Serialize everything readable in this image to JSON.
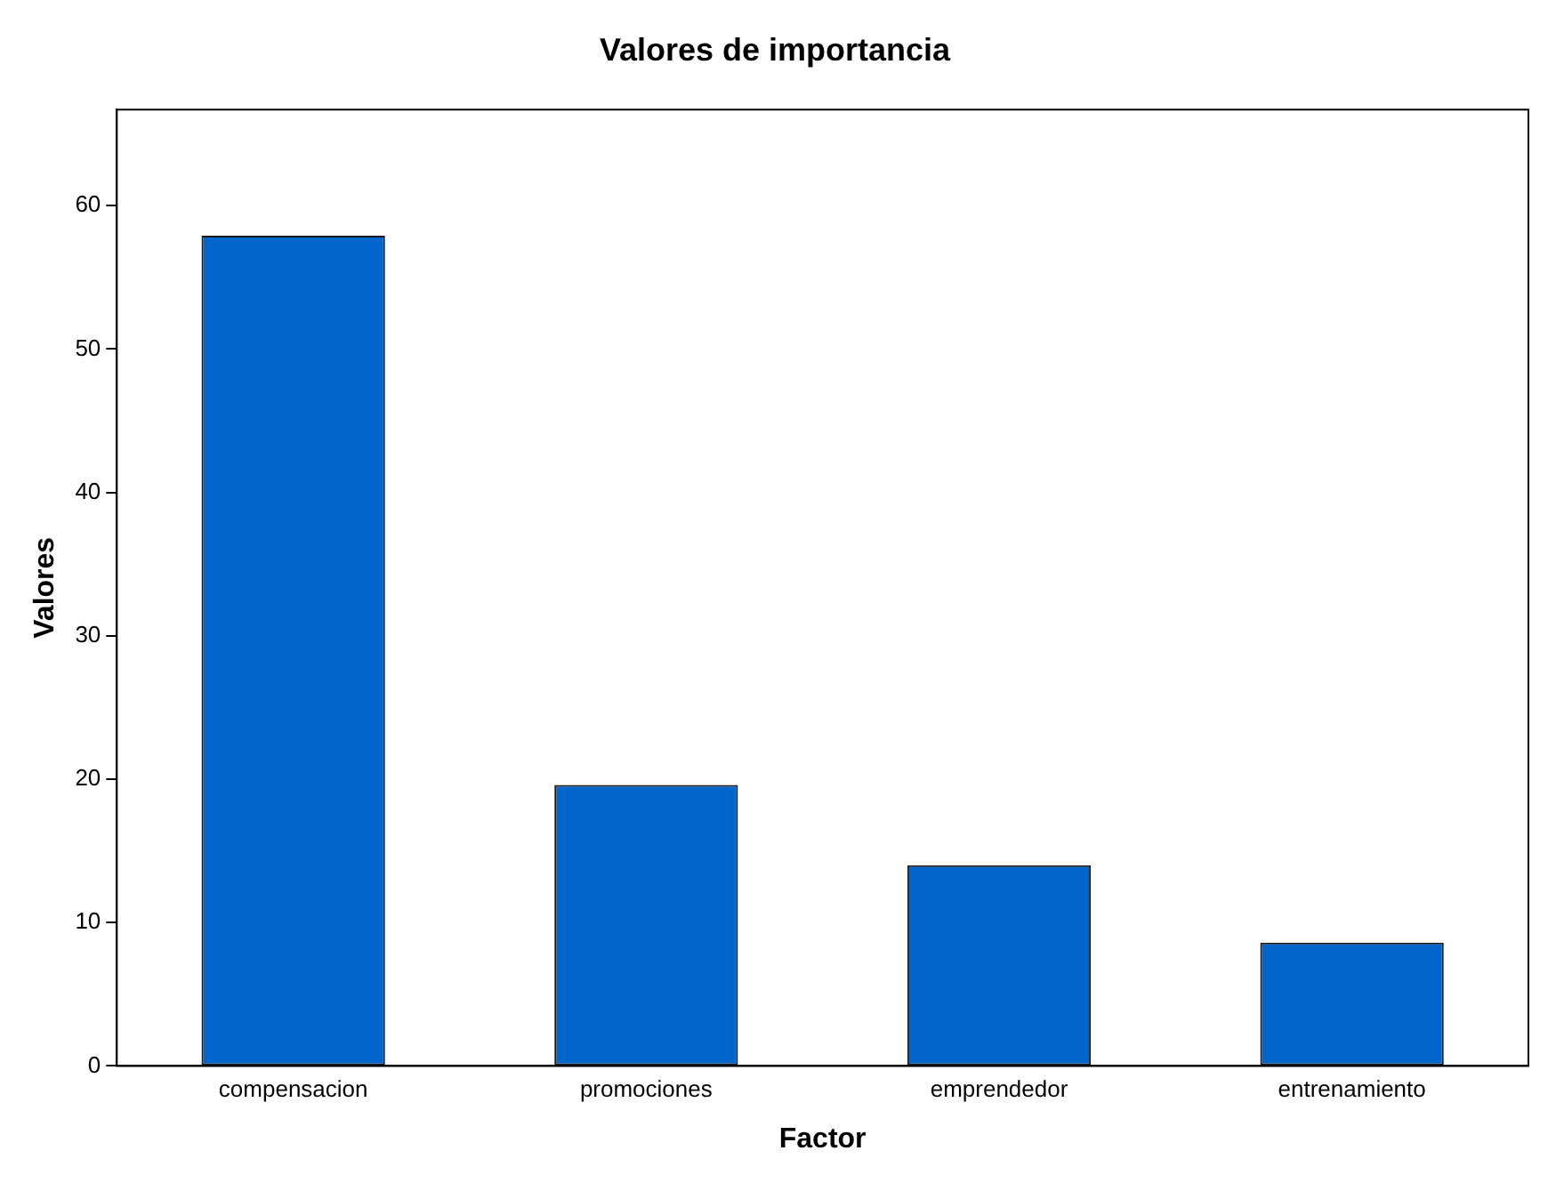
{
  "chart_data": {
    "type": "bar",
    "title": "Valores de importancia",
    "xlabel": "Factor",
    "ylabel": "Valores",
    "categories": [
      "compensacion",
      "promociones",
      "emprendedor",
      "entrenamiento"
    ],
    "values": [
      57.9,
      19.6,
      14.0,
      8.6
    ],
    "color": "#0066cc",
    "ylim": [
      0,
      66.7
    ],
    "yticks": [
      0,
      10,
      20,
      30,
      40,
      50,
      60
    ],
    "grid": false,
    "legend": false
  }
}
